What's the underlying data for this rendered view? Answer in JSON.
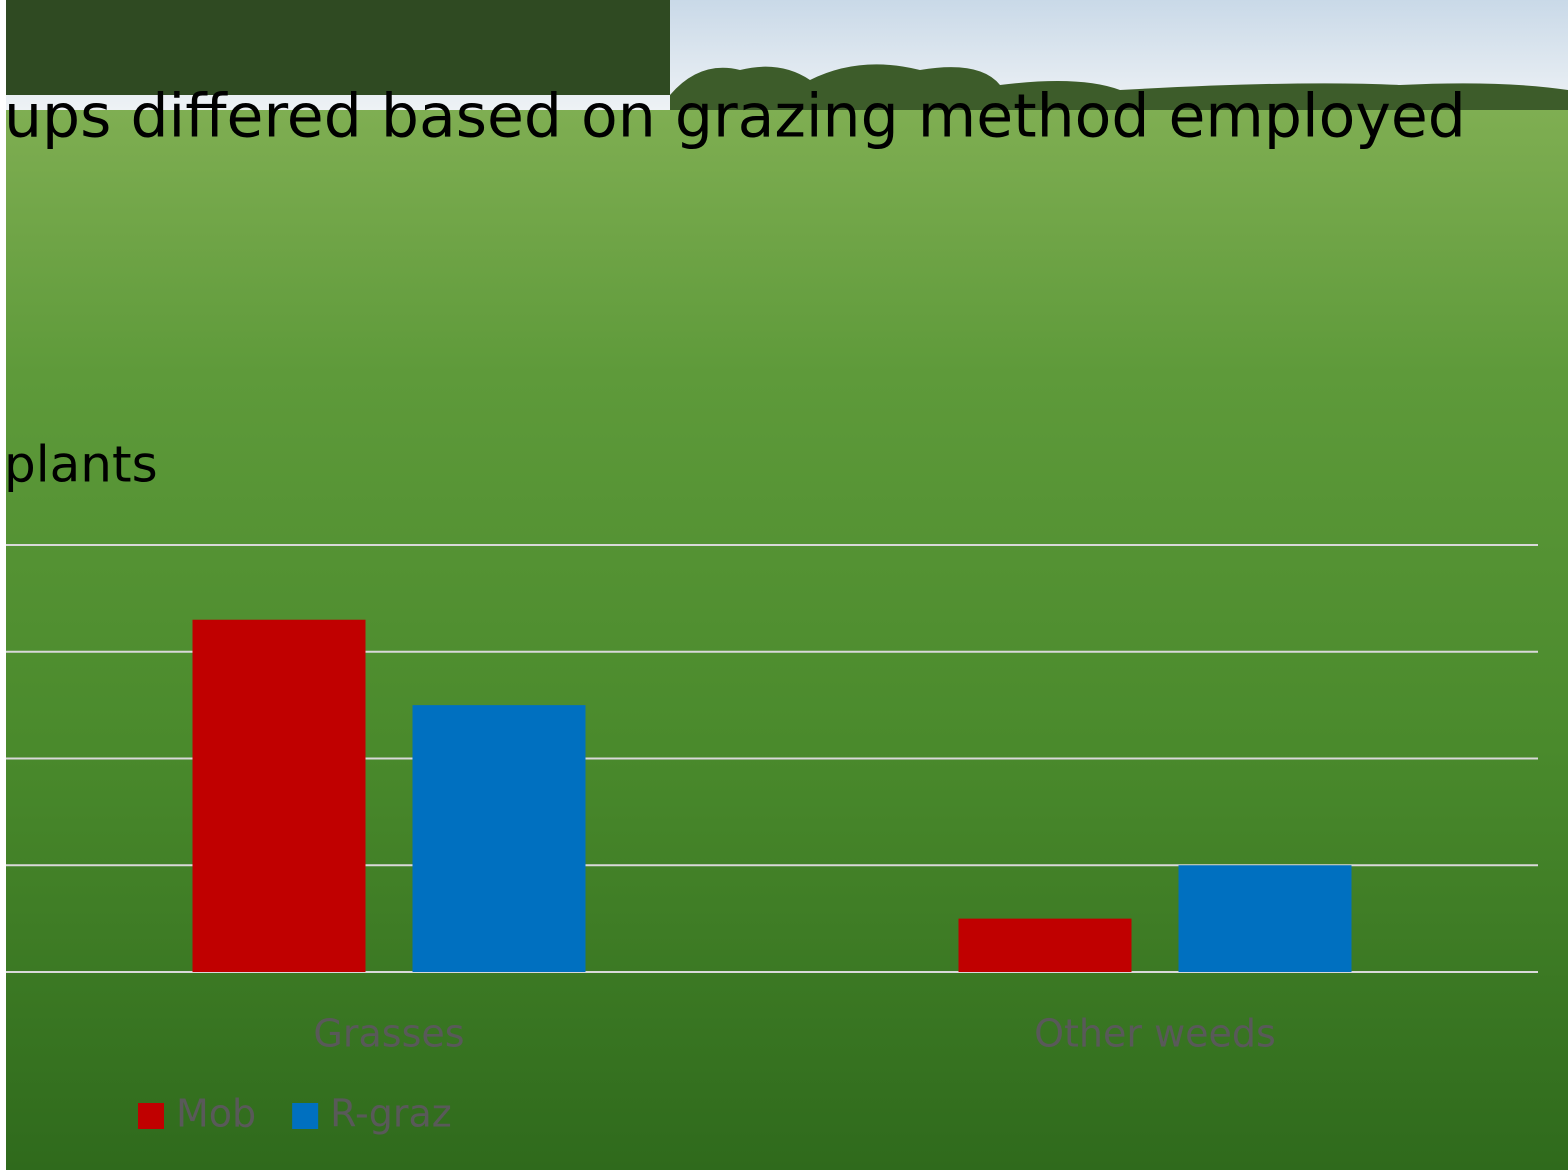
{
  "chart_data": {
    "type": "bar",
    "title": "ups differed based on grazing method employed",
    "subtitle": "plants",
    "categories": [
      "Grasses",
      "Other weeds"
    ],
    "series": [
      {
        "name": "Mob",
        "color": "#c00000",
        "values": [
          3.3,
          0.5
        ]
      },
      {
        "name": "R-graz",
        "color": "#0070c0",
        "values": [
          2.5,
          1.0
        ]
      }
    ],
    "ylim": [
      0,
      4
    ],
    "yticks": [
      0,
      1,
      2,
      3,
      4
    ],
    "grid": true,
    "legend": "bottom-left"
  }
}
